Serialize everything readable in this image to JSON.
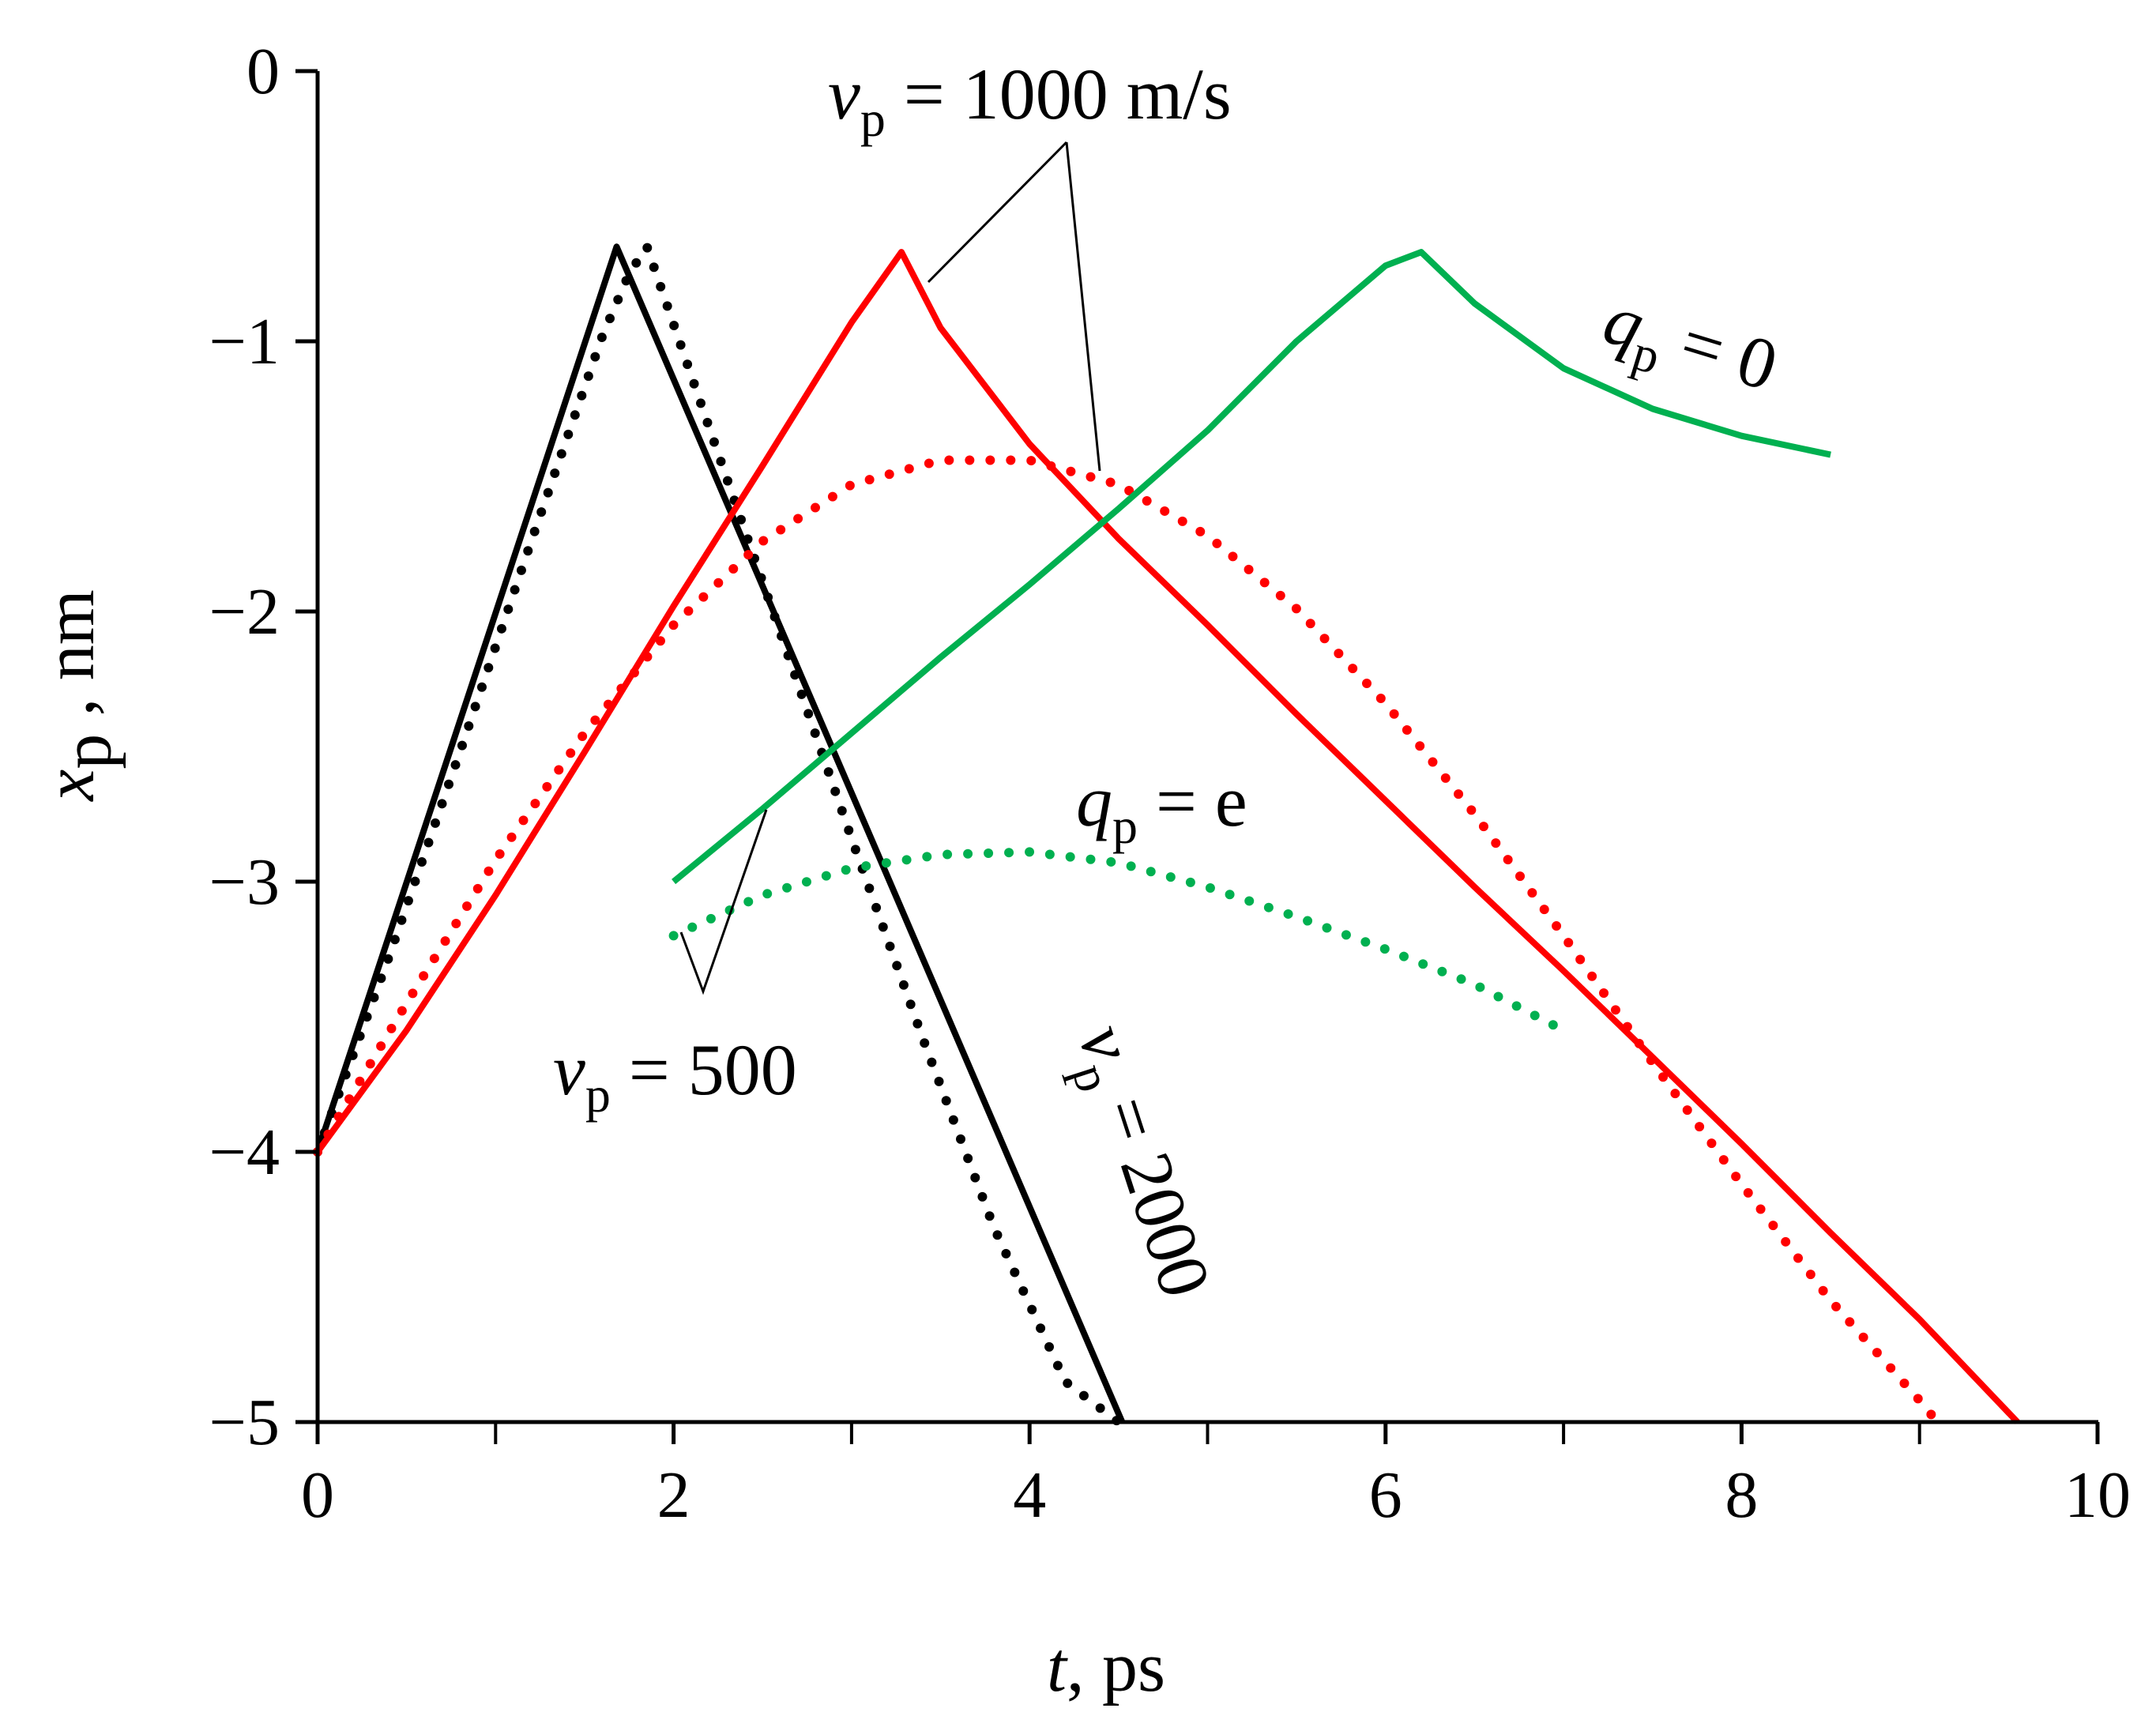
{
  "chart_data": {
    "type": "line",
    "xlabel": {
      "var": "t",
      "rest": ", ps"
    },
    "ylabel": {
      "var": "x",
      "sub": "p",
      "rest": " , nm"
    },
    "xlim": [
      0,
      10
    ],
    "ylim": [
      -5,
      0
    ],
    "xticks": [
      0,
      2,
      4,
      6,
      8,
      10
    ],
    "yticks": [
      0,
      -1,
      -2,
      -3,
      -4,
      -5
    ],
    "xtick_labels": [
      "0",
      "2",
      "4",
      "6",
      "8",
      "10"
    ],
    "ytick_labels": [
      "0",
      "−1",
      "−2",
      "−3",
      "−4",
      "−5"
    ],
    "grid": false,
    "colors": {
      "black": "#000000",
      "red": "#ff0000",
      "green": "#00b050"
    },
    "series": [
      {
        "key": "black-solid",
        "color": "#000000",
        "style": "solid",
        "x": [
          0,
          1.68,
          4.52
        ],
        "y": [
          -4.0,
          -0.65,
          -5.0
        ]
      },
      {
        "key": "black-dotted",
        "color": "#000000",
        "style": "dotted",
        "x": [
          0,
          0.4,
          0.8,
          1.2,
          1.6,
          1.75,
          1.85,
          2.2,
          2.6,
          3.0,
          3.4,
          3.8,
          4.2,
          4.5
        ],
        "y": [
          -4.0,
          -3.28,
          -2.52,
          -1.74,
          -0.98,
          -0.75,
          -0.65,
          -1.32,
          -2.08,
          -2.84,
          -3.58,
          -4.28,
          -4.85,
          -5.0
        ]
      },
      {
        "key": "red-solid",
        "color": "#ff0000",
        "style": "solid",
        "x": [
          0,
          0.5,
          1.0,
          1.5,
          2.0,
          2.5,
          3.0,
          3.28,
          3.5,
          4.0,
          4.5,
          5.0,
          5.5,
          6.0,
          6.5,
          7.0,
          7.5,
          8.0,
          8.5,
          9.0,
          9.55
        ],
        "y": [
          -4.0,
          -3.55,
          -3.05,
          -2.52,
          -1.98,
          -1.46,
          -0.93,
          -0.67,
          -0.95,
          -1.38,
          -1.73,
          -2.05,
          -2.38,
          -2.7,
          -3.02,
          -3.33,
          -3.65,
          -3.97,
          -4.3,
          -4.62,
          -5.0
        ]
      },
      {
        "key": "red-dotted",
        "color": "#ff0000",
        "style": "dotted",
        "x": [
          0,
          0.5,
          1.0,
          1.5,
          2.0,
          2.5,
          3.0,
          3.5,
          4.0,
          4.5,
          5.0,
          5.5,
          6.0,
          6.5,
          7.0,
          7.5,
          8.0,
          8.5,
          9.0,
          9.1
        ],
        "y": [
          -4.0,
          -3.45,
          -2.92,
          -2.45,
          -2.05,
          -1.74,
          -1.53,
          -1.44,
          -1.44,
          -1.53,
          -1.72,
          -1.99,
          -2.34,
          -2.75,
          -3.2,
          -3.67,
          -4.12,
          -4.55,
          -4.92,
          -5.0
        ]
      },
      {
        "key": "green-solid",
        "color": "#00b050",
        "style": "solid",
        "x": [
          2.0,
          2.5,
          3.0,
          3.5,
          4.0,
          4.5,
          5.0,
          5.5,
          6.0,
          6.2,
          6.5,
          7.0,
          7.5,
          8.0,
          8.5
        ],
        "y": [
          -3.0,
          -2.73,
          -2.45,
          -2.17,
          -1.9,
          -1.62,
          -1.33,
          -1.0,
          -0.72,
          -0.67,
          -0.86,
          -1.1,
          -1.25,
          -1.35,
          -1.42
        ]
      },
      {
        "key": "green-dotted",
        "color": "#00b050",
        "style": "dotted",
        "x": [
          2.0,
          2.5,
          3.0,
          3.5,
          4.0,
          4.5,
          5.0,
          5.5,
          6.0,
          6.5,
          7.0
        ],
        "y": [
          -3.2,
          -3.05,
          -2.95,
          -2.9,
          -2.89,
          -2.93,
          -3.02,
          -3.13,
          -3.25,
          -3.38,
          -3.55
        ]
      }
    ],
    "annotations": {
      "v1000": {
        "var": "v",
        "sub": "p",
        "rest": " = 1000 m/s"
      },
      "v500": {
        "var": "v",
        "sub": "p",
        "rest": " = 500"
      },
      "v2000": {
        "var": "v",
        "sub": "p",
        "rest": " = 2000"
      },
      "q0": {
        "var": "q",
        "sub": "p",
        "rest": " = 0"
      },
      "qe": {
        "var": "q",
        "sub": "p",
        "rest": " = e"
      }
    }
  }
}
